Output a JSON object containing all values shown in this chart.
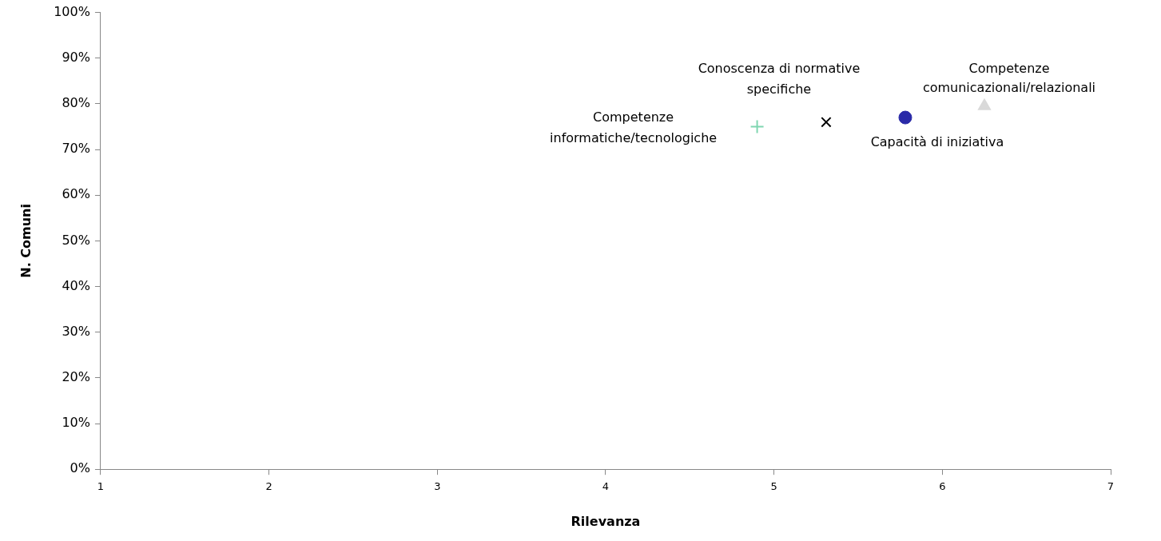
{
  "chart_data": {
    "type": "scatter",
    "xlabel": "Rilevanza",
    "ylabel": "N. Comuni",
    "xlim": [
      1,
      7
    ],
    "xticks": [
      1,
      2,
      3,
      4,
      5,
      6,
      7
    ],
    "ylim": [
      0,
      100
    ],
    "yticks": [
      {
        "value": 0,
        "label": "0%"
      },
      {
        "value": 10,
        "label": "10%"
      },
      {
        "value": 20,
        "label": "20%"
      },
      {
        "value": 30,
        "label": "30%"
      },
      {
        "value": 40,
        "label": "40%"
      },
      {
        "value": 50,
        "label": "50%"
      },
      {
        "value": 60,
        "label": "60%"
      },
      {
        "value": 70,
        "label": "70%"
      },
      {
        "value": 80,
        "label": "80%"
      },
      {
        "value": 90,
        "label": "90%"
      },
      {
        "value": 100,
        "label": "100%"
      }
    ],
    "grid": false,
    "legend": false,
    "series": [
      {
        "name": "Competenze informatiche/tecnologiche",
        "color": "#7fd6b0",
        "marker": "cross",
        "x": [
          4.9
        ],
        "values": [
          75
        ]
      },
      {
        "name": "Conoscenza di normative specifiche",
        "color": "#000000",
        "marker": "x",
        "x": [
          5.31
        ],
        "values": [
          76
        ]
      },
      {
        "name": "Capacità di iniziativa",
        "color": "#2a2aa8",
        "marker": "circle",
        "x": [
          5.78
        ],
        "values": [
          77
        ]
      },
      {
        "name": "Competenze comunicazionali/relazionali",
        "color": "#d9d9d9",
        "marker": "triangle",
        "x": [
          6.25
        ],
        "values": [
          79.5
        ]
      }
    ]
  }
}
